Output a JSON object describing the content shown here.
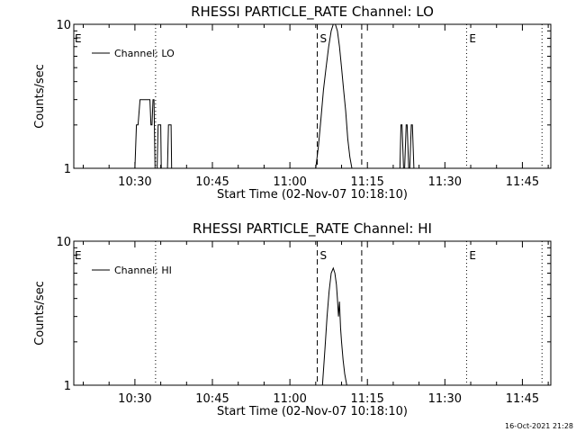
{
  "chart_data": [
    {
      "type": "line",
      "title": "RHESSI PARTICLE_RATE Channel: LO",
      "xlabel": "Start Time (02-Nov-07 10:18:10)",
      "ylabel": "Counts/sec",
      "y_scale": "log",
      "ylim": [
        1,
        10
      ],
      "y_ticks": [
        {
          "value": 1,
          "label": "1"
        },
        {
          "value": 10,
          "label": "10"
        }
      ],
      "xlim_minutes": [
        18.17,
        110.5
      ],
      "x_ticks": [
        {
          "minute": 30,
          "label": "10:30"
        },
        {
          "minute": 45,
          "label": "10:45"
        },
        {
          "minute": 60,
          "label": "11:00"
        },
        {
          "minute": 75,
          "label": "11:15"
        },
        {
          "minute": 90,
          "label": "11:30"
        },
        {
          "minute": 105,
          "label": "11:45"
        }
      ],
      "legend": {
        "text": "Channel: LO",
        "placement": "top-left"
      },
      "vlines": [
        {
          "minute": 34.0,
          "style": "dotted",
          "label": "E"
        },
        {
          "minute": 65.3,
          "style": "dashed",
          "label": "S"
        },
        {
          "minute": 73.9,
          "style": "dashed",
          "label": ""
        },
        {
          "minute": 94.2,
          "style": "dotted",
          "label": "E"
        },
        {
          "minute": 108.8,
          "style": "dotted",
          "label": ""
        }
      ],
      "series": [
        {
          "x": [
            29.4,
            30.0,
            30.3,
            30.6,
            31.0,
            31.3,
            31.6,
            32.0,
            32.3,
            32.6,
            32.9,
            33.1,
            33.3,
            33.5,
            33.7,
            33.9,
            34.0,
            34.3,
            34.5,
            34.7,
            35.0,
            35.1,
            35.3,
            35.5,
            35.7,
            36.0,
            36.3,
            36.5,
            36.7,
            37.0,
            37.1,
            37.3,
            37.5,
            37.7
          ],
          "y": [
            1,
            1,
            2,
            2,
            3,
            3,
            3,
            3,
            3,
            3,
            3,
            2,
            2,
            3,
            3,
            1,
            1,
            1,
            2,
            2,
            2,
            1,
            1,
            1,
            1,
            1,
            1,
            2,
            2,
            2,
            1,
            1,
            1,
            1
          ]
        },
        {
          "x": [
            65.0,
            65.5,
            66.0,
            66.5,
            67.0,
            67.5,
            68.0,
            68.4,
            68.8,
            69.2,
            69.6,
            70.0,
            70.4,
            70.8,
            71.2,
            71.6,
            72.0
          ],
          "y": [
            1,
            1.4,
            2.2,
            3.5,
            5,
            7,
            9,
            10,
            10,
            9,
            7,
            5,
            3.5,
            2.5,
            1.6,
            1.2,
            1
          ]
        },
        {
          "x": [
            81.0,
            81.3,
            81.5,
            81.7,
            82.0,
            82.2,
            82.5,
            82.7,
            83.0,
            83.2,
            83.5,
            83.7,
            84.0,
            84.2,
            84.4
          ],
          "y": [
            1,
            1,
            2,
            2,
            1,
            1,
            2,
            2,
            1,
            1,
            2,
            2,
            1,
            1,
            1
          ]
        }
      ]
    },
    {
      "type": "line",
      "title": "RHESSI PARTICLE_RATE Channel: HI",
      "xlabel": "Start Time (02-Nov-07 10:18:10)",
      "ylabel": "Counts/sec",
      "y_scale": "log",
      "ylim": [
        1,
        10
      ],
      "y_ticks": [
        {
          "value": 1,
          "label": "1"
        },
        {
          "value": 10,
          "label": "10"
        }
      ],
      "xlim_minutes": [
        18.17,
        110.5
      ],
      "x_ticks": [
        {
          "minute": 30,
          "label": "10:30"
        },
        {
          "minute": 45,
          "label": "10:45"
        },
        {
          "minute": 60,
          "label": "11:00"
        },
        {
          "minute": 75,
          "label": "11:15"
        },
        {
          "minute": 90,
          "label": "11:30"
        },
        {
          "minute": 105,
          "label": "11:45"
        }
      ],
      "legend": {
        "text": "Channel: HI",
        "placement": "top-left"
      },
      "vlines": [
        {
          "minute": 34.0,
          "style": "dotted",
          "label": "E"
        },
        {
          "minute": 65.3,
          "style": "dashed",
          "label": "S"
        },
        {
          "minute": 73.9,
          "style": "dashed",
          "label": ""
        },
        {
          "minute": 94.2,
          "style": "dotted",
          "label": "E"
        },
        {
          "minute": 108.8,
          "style": "dotted",
          "label": ""
        }
      ],
      "series": [
        {
          "x": [
            66.3,
            66.8,
            67.2,
            67.6,
            68.0,
            68.4,
            68.7,
            69.0,
            69.2,
            69.4,
            69.6,
            69.8,
            70.0,
            70.3,
            70.6,
            71.0
          ],
          "y": [
            1,
            1.8,
            3,
            4.5,
            6,
            6.5,
            6,
            5,
            4,
            3,
            3.8,
            2.5,
            2,
            1.5,
            1.2,
            1
          ]
        }
      ]
    }
  ],
  "footer": {
    "timestamp": "16-Oct-2021 21:28"
  }
}
